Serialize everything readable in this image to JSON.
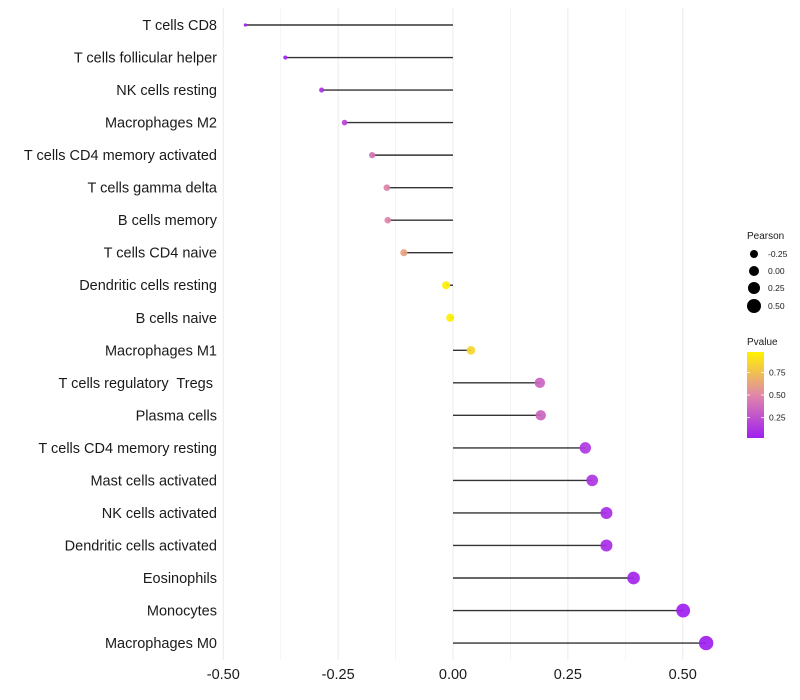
{
  "chart_data": {
    "type": "scatter",
    "subtype": "lollipop",
    "title": "",
    "xlabel": "",
    "ylabel": "",
    "xlim": [
      -0.5,
      0.56
    ],
    "xticks": [
      -0.5,
      -0.25,
      0.0,
      0.25,
      0.5
    ],
    "xtick_labels": [
      "-0.50",
      "-0.25",
      "0.00",
      "0.25",
      "0.50"
    ],
    "grid": true,
    "categories": [
      "T cells CD8",
      "T cells follicular helper",
      "NK cells resting",
      "Macrophages M2",
      "T cells CD4 memory activated",
      "T cells gamma delta",
      "B cells memory",
      "T cells CD4 naive",
      "Dendritic cells resting",
      "B cells naive",
      "Macrophages M1",
      "T cells regulatory  Tregs ",
      "Plasma cells",
      "T cells CD4 memory resting",
      "Mast cells activated",
      "NK cells activated",
      "Dendritic cells activated",
      "Eosinophils",
      "Monocytes",
      "Macrophages M0"
    ],
    "series": [
      {
        "name": "Pearson",
        "values": [
          -0.452,
          -0.365,
          -0.286,
          -0.236,
          -0.176,
          -0.144,
          -0.142,
          -0.107,
          -0.015,
          -0.006,
          0.039,
          0.189,
          0.191,
          0.288,
          0.303,
          0.334,
          0.334,
          0.393,
          0.501,
          0.551
        ]
      },
      {
        "name": "Pvalue",
        "values": [
          0.001,
          0.02,
          0.08,
          0.18,
          0.4,
          0.47,
          0.48,
          0.62,
          0.98,
          0.99,
          0.87,
          0.33,
          0.33,
          0.12,
          0.1,
          0.06,
          0.06,
          0.03,
          0.002,
          0.001
        ]
      }
    ],
    "legend": {
      "placement": "right",
      "size": {
        "title": "Pearson",
        "values": [
          -0.25,
          0.0,
          0.25,
          0.5
        ],
        "labels": [
          "-0.25",
          "0.00",
          "0.25",
          "0.50"
        ]
      },
      "color": {
        "title": "Pvalue",
        "range": [
          0.0,
          1.0
        ],
        "ticks": [
          0.75,
          0.5,
          0.25
        ],
        "tick_labels": [
          "0.75",
          "0.50",
          "0.25"
        ],
        "low_color": "#A020F0",
        "mid_color": "#E088A8",
        "high_color": "#FFFF00"
      }
    },
    "colors": {
      "segment": "#333333",
      "grid": "#EBEBEB",
      "legend_point": "#000000"
    }
  }
}
